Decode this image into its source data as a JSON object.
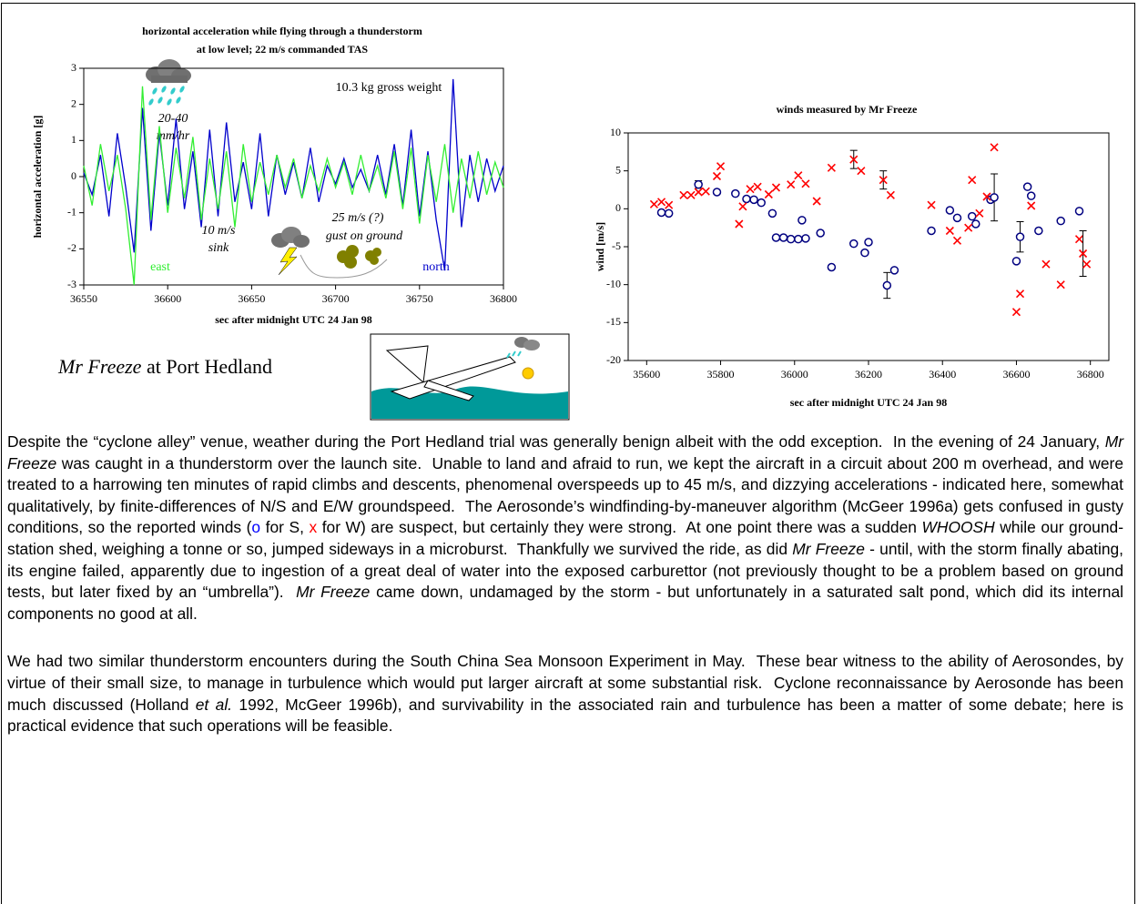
{
  "chart_data": [
    {
      "type": "line",
      "title": [
        "horizontal acceleration while flying through a thunderstorm",
        "at low level; 22 m/s commanded TAS"
      ],
      "x_label": "sec after midnight UTC 24 Jan 98",
      "y_label": "horizontal acceleration [g]",
      "x": [
        36550,
        36555,
        36560,
        36565,
        36570,
        36575,
        36580,
        36585,
        36590,
        36595,
        36600,
        36605,
        36610,
        36615,
        36620,
        36625,
        36630,
        36635,
        36640,
        36645,
        36650,
        36655,
        36660,
        36665,
        36670,
        36675,
        36680,
        36685,
        36690,
        36695,
        36700,
        36705,
        36710,
        36715,
        36720,
        36725,
        36730,
        36735,
        36740,
        36745,
        36750,
        36755,
        36760,
        36765,
        36770,
        36775,
        36780,
        36785,
        36790,
        36795,
        36800
      ],
      "series": [
        {
          "color": "#0000cc",
          "values": [
            0.1,
            -0.5,
            0.6,
            -1.1,
            1.2,
            -0.3,
            -2.1,
            1.9,
            -1.5,
            1.2,
            -0.8,
            1.6,
            -0.9,
            0.7,
            -1.4,
            1.3,
            -1.1,
            1.5,
            -0.7,
            0.4,
            -0.9,
            1.2,
            -1.1,
            0.6,
            -0.5,
            0.4,
            -0.6,
            0.8,
            -0.7,
            0.3,
            -0.2,
            0.5,
            -0.3,
            0.2,
            -0.4,
            0.6,
            -0.5,
            0.9,
            -0.8,
            1.3,
            -1.1,
            0.7,
            -1.2,
            -2.6,
            2.7,
            -1.4,
            0.6,
            -0.7,
            0.5,
            -0.4,
            0.3
          ]
        },
        {
          "color": "#33ee33",
          "values": [
            0.3,
            -0.8,
            0.9,
            -0.4,
            0.6,
            -0.9,
            -3,
            2.5,
            -1.2,
            1.4,
            -1,
            0.8,
            -0.6,
            1.1,
            -1.2,
            0.5,
            -0.9,
            0.7,
            -1.4,
            0.9,
            -0.7,
            0.4,
            -0.5,
            0.6,
            -0.3,
            0.5,
            -0.6,
            0.3,
            -0.4,
            0.5,
            -0.3,
            0.4,
            -0.5,
            0.6,
            -0.4,
            0.3,
            -0.6,
            0.7,
            -0.9,
            0.8,
            -1.3,
            0.6,
            -0.7,
            0.9,
            -1,
            0.5,
            -0.6,
            0.7,
            -0.5,
            0.4,
            -0.3
          ]
        }
      ],
      "xlim": [
        36550,
        36800
      ],
      "xticks": [
        36550,
        36600,
        36650,
        36700,
        36750,
        36800
      ],
      "ylim": [
        -3,
        3
      ],
      "yticks": [
        -3,
        -2,
        -1,
        0,
        1,
        2,
        3
      ],
      "annotations": [
        "10.3 kg gross weight",
        "20-40",
        "mm/hr",
        "10 m/s",
        "sink",
        "25 m/s (?)",
        "gust on ground",
        "east",
        "north"
      ]
    },
    {
      "type": "scatter",
      "title": "winds measured by Mr Freeze",
      "x_label": "sec after midnight UTC 24 Jan 98",
      "y_label": "wind [m/s]",
      "series": [
        {
          "color": "#000080",
          "marker": "circle",
          "x": [
            35640,
            35660,
            35740,
            35790,
            35840,
            35870,
            35890,
            35910,
            35940,
            35950,
            35970,
            35990,
            36010,
            36020,
            36030,
            36070,
            36100,
            36160,
            36190,
            36200,
            36250,
            36270,
            36370,
            36420,
            36440,
            36480,
            36490,
            36530,
            36540,
            36600,
            36610,
            36630,
            36640,
            36660,
            36720,
            36770
          ],
          "values": [
            -0.5,
            -0.6,
            3.2,
            2.2,
            2,
            1.3,
            1.2,
            0.8,
            -0.6,
            -3.8,
            -3.8,
            -4,
            -4,
            -1.5,
            -3.9,
            -3.2,
            -7.7,
            -4.6,
            -5.8,
            -4.4,
            -10.1,
            -8.1,
            -2.9,
            -0.2,
            -1.2,
            -1,
            -2,
            1.2,
            1.5,
            -6.9,
            -3.7,
            2.9,
            1.7,
            -2.9,
            -1.6,
            -0.3
          ],
          "errors": [
            null,
            null,
            0.5,
            null,
            null,
            null,
            null,
            null,
            null,
            null,
            null,
            null,
            null,
            null,
            null,
            null,
            null,
            null,
            null,
            null,
            1.7,
            null,
            null,
            null,
            null,
            null,
            null,
            null,
            3.1,
            null,
            2,
            null,
            null,
            null,
            null,
            null
          ]
        },
        {
          "color": "#ff0000",
          "marker": "x",
          "x": [
            35620,
            35640,
            35660,
            35700,
            35720,
            35740,
            35760,
            35790,
            35800,
            35850,
            35860,
            35880,
            35900,
            35930,
            35950,
            35990,
            36010,
            36030,
            36060,
            36100,
            36160,
            36180,
            36240,
            36260,
            36370,
            36420,
            36440,
            36470,
            36480,
            36500,
            36520,
            36540,
            36600,
            36610,
            36640,
            36680,
            36720,
            36770,
            36780,
            36790
          ],
          "values": [
            0.6,
            0.9,
            0.5,
            1.8,
            1.8,
            2.2,
            2.3,
            4.3,
            5.6,
            -2,
            0.3,
            2.6,
            2.9,
            1.9,
            2.8,
            3.2,
            4.4,
            3.3,
            1,
            5.4,
            6.5,
            5,
            3.8,
            1.8,
            0.5,
            -2.9,
            -4.2,
            -2.5,
            3.8,
            -0.6,
            1.6,
            8.1,
            -13.6,
            -11.2,
            0.4,
            -7.3,
            -10,
            -4,
            -5.9,
            -7.3
          ],
          "errors": [
            null,
            null,
            null,
            null,
            null,
            null,
            null,
            null,
            null,
            null,
            null,
            null,
            null,
            null,
            null,
            null,
            null,
            null,
            null,
            null,
            1.2,
            null,
            1.2,
            null,
            null,
            null,
            null,
            null,
            null,
            null,
            null,
            null,
            null,
            null,
            null,
            null,
            null,
            null,
            3,
            null
          ]
        }
      ],
      "xlim": [
        35550,
        36850
      ],
      "xticks": [
        35600,
        35800,
        36000,
        36200,
        36400,
        36600,
        36800
      ],
      "ylim": [
        -20,
        10
      ],
      "yticks": [
        -20,
        -15,
        -10,
        -5,
        0,
        5,
        10
      ]
    }
  ],
  "caption": [
    {
      "text": "Mr Freeze",
      "italic": true
    },
    " at Port Hedland"
  ],
  "paragraphs": [
    [
      "Despite the “cyclone alley” venue, weather during the Port Hedland trial was generally benign albeit with the odd exception.  In the evening of 24 January, ",
      {
        "text": "Mr Freeze",
        "italic": true
      },
      " was caught in a thunderstorm over the launch site.  Unable to land and afraid to run, we kept the aircraft in a circuit about 200 m overhead, and were treated to a harrowing ten minutes of rapid climbs and descents, phenomenal overspeeds up to 45 m/s, and dizzying accelerations - indicated here, somewhat qualitatively, by finite-differences of N/S and E/W groundspeed.  The Aerosonde’s windfinding-by-maneuver algorithm (McGeer 1996a) gets confused in gusty conditions, so the reported winds (",
      {
        "text": "o",
        "color": "#0000ff"
      },
      " for S, ",
      {
        "text": "x",
        "color": "#ff0000"
      },
      " for W) are suspect, but certainly they were strong.  At one point there was a sudden ",
      {
        "text": "WHOOSH",
        "italic": true
      },
      " while our ground-station shed, weighing a tonne or so, jumped sideways in a microburst.  Thankfully we survived the ride, as did ",
      {
        "text": "Mr Freeze",
        "italic": true
      },
      " - until, with the storm finally abating, its engine failed, apparently due to ingestion of a great deal of water into the exposed carburettor (not previously thought to be a problem based on ground tests, but later fixed by an “umbrella”).  ",
      {
        "text": "Mr Freeze",
        "italic": true
      },
      " came down, undamaged by the storm - but unfortunately in a saturated salt pond, which did its internal components no good at all."
    ],
    [
      "We had two similar thunderstorm encounters during the South China Sea Monsoon Experiment in May.  These bear witness to the ability of Aerosondes, by virtue of their small size, to manage in turbulence which would put larger aircraft at some substantial risk.  Cyclone reconnaissance by Aerosonde has been much discussed (Holland ",
      {
        "text": "et al.",
        "italic": true
      },
      " 1992, McGeer 1996b), and survivability in the associated rain and turbulence has been a matter of some debate; here is practical evidence that such operations will be feasible."
    ]
  ]
}
